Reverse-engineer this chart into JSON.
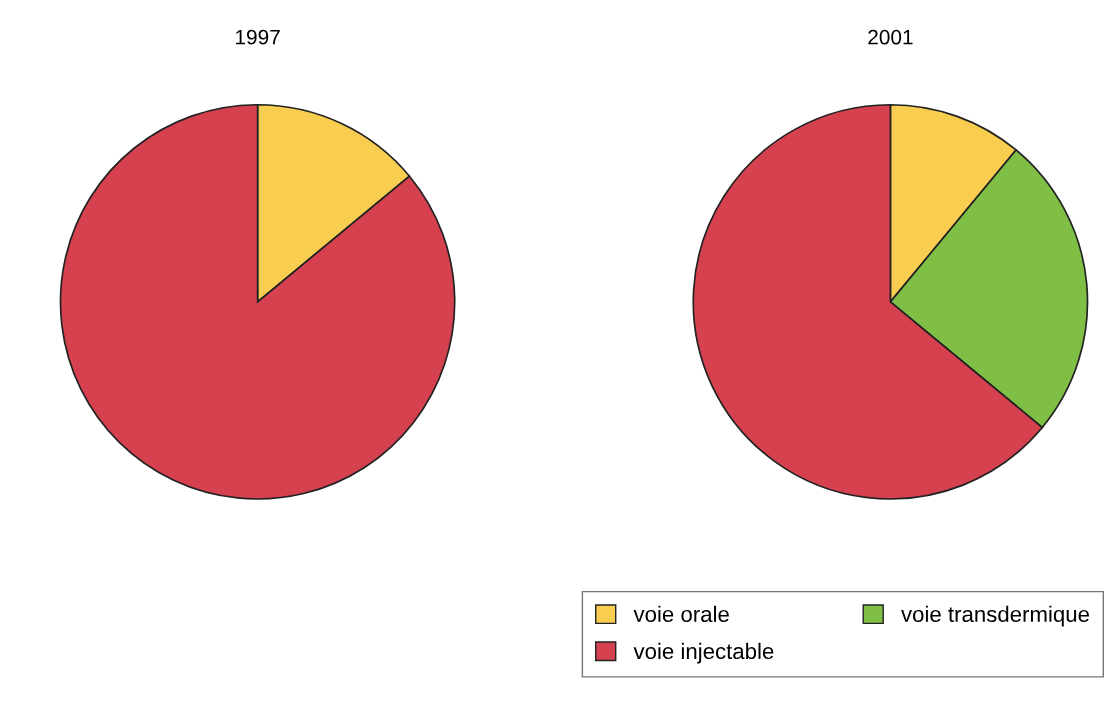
{
  "chart_data": [
    {
      "type": "pie",
      "title": "1997",
      "categories": [
        null,
        null
      ],
      "values": [
        14,
        86
      ],
      "colors": [
        "#f9cd4f",
        "#d5414f"
      ],
      "legend": false
    },
    {
      "type": "pie",
      "title": "2001",
      "categories": [
        "voie orale",
        "voie transdermique",
        "voie injectable"
      ],
      "values": [
        11,
        25,
        64
      ],
      "colors": [
        "#f9cd4f",
        "#7fbf45",
        "#d5414f"
      ],
      "legend": "bottom"
    }
  ]
}
